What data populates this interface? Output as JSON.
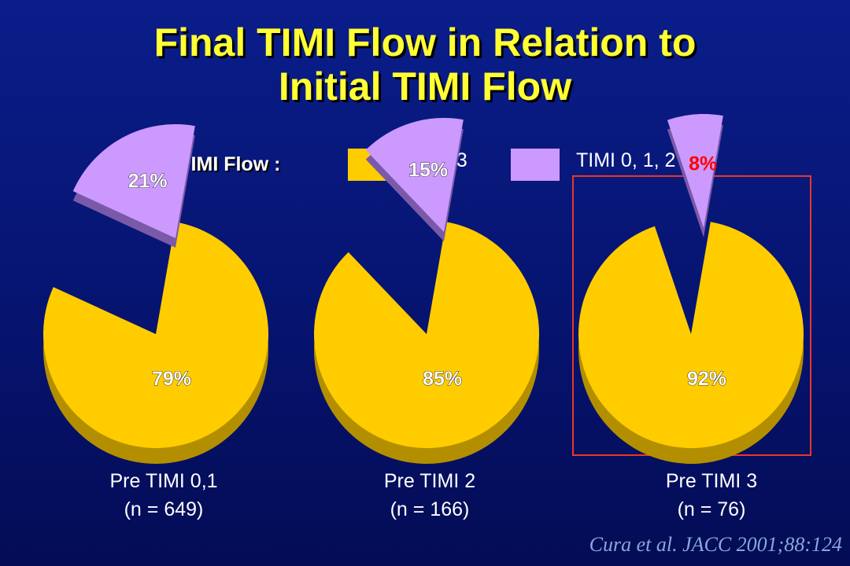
{
  "title_line1": "Final TIMI Flow in Relation to",
  "title_line2": "Initial TIMI Flow",
  "legend": {
    "label": "Final TIMI Flow :",
    "items": [
      {
        "name": "TIMI 3",
        "color": "#ffcc00"
      },
      {
        "name": "TIMI 0, 1, 2",
        "color": "#cc99ff"
      }
    ]
  },
  "colors": {
    "timi3": "#ffcc00",
    "timi3_side": "#b38f00",
    "timi012": "#cc99ff",
    "timi012_side": "#7a5aa8",
    "highlight": "#e8372a",
    "highlight_text": "#ff0000"
  },
  "chart_data": {
    "type": "pie",
    "series_names": [
      "TIMI 3",
      "TIMI 0, 1, 2"
    ],
    "pies": [
      {
        "caption_line1": "Pre TIMI  0,1",
        "caption_line2": "(n = 649)",
        "values": [
          79,
          21
        ],
        "labels": [
          "79%",
          "21%"
        ]
      },
      {
        "caption_line1": "Pre TIMI  2",
        "caption_line2": "(n = 166)",
        "values": [
          85,
          15
        ],
        "labels": [
          "85%",
          "15%"
        ]
      },
      {
        "caption_line1": "Pre TIMI  3",
        "caption_line2": "(n = 76)",
        "values": [
          92,
          8
        ],
        "labels": [
          "92%",
          "8%"
        ],
        "highlighted": true
      }
    ]
  },
  "citation": "Cura et al. JACC 2001;88:124"
}
